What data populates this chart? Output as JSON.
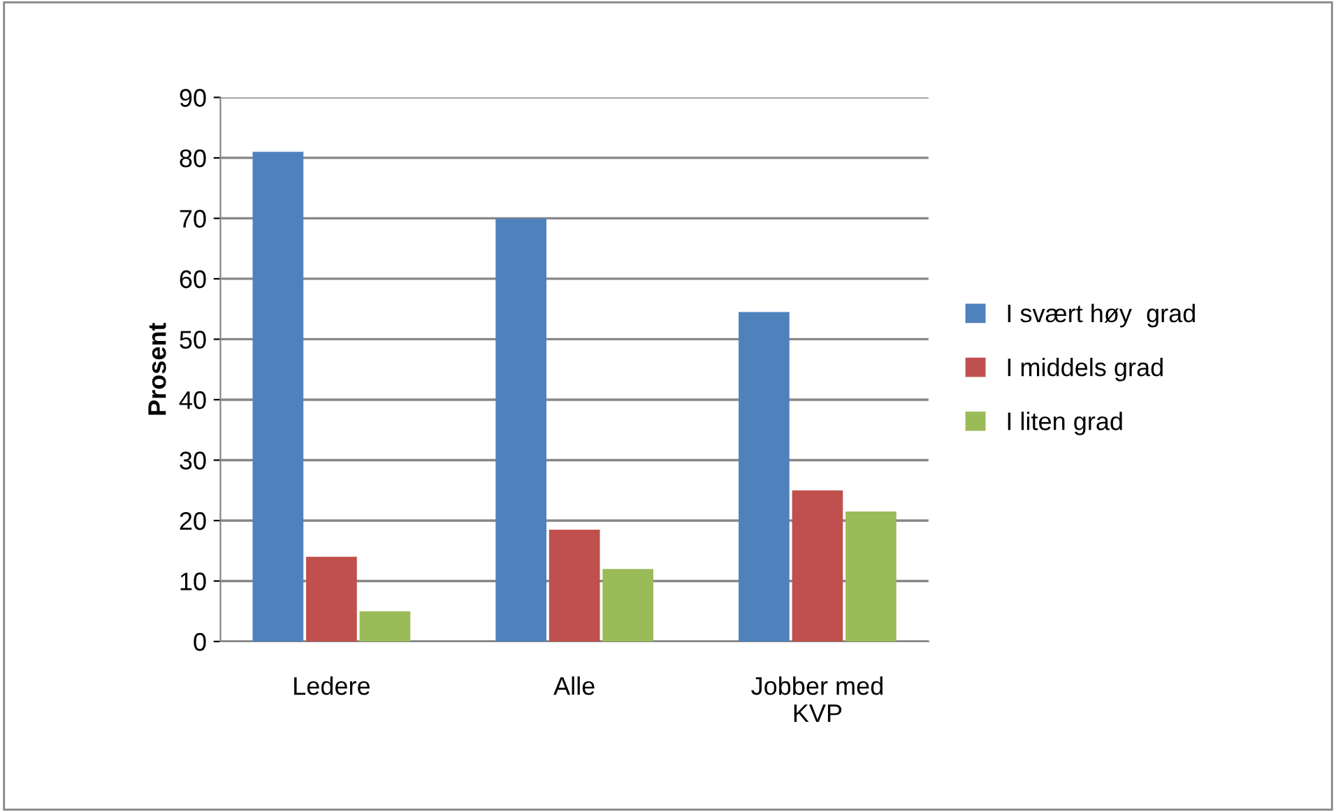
{
  "chart_data": {
    "type": "bar",
    "ylabel": "Prosent",
    "categories": [
      "Ledere",
      "Alle",
      "Jobber med\nKVP"
    ],
    "series": [
      {
        "name": "I svært høy  grad",
        "color": "#4f81bd",
        "values": [
          81,
          70,
          54.5
        ]
      },
      {
        "name": "I middels grad",
        "color": "#c0504d",
        "values": [
          14,
          18.5,
          25
        ]
      },
      {
        "name": "I liten grad",
        "color": "#9bbb59",
        "values": [
          5,
          12,
          21.5
        ]
      }
    ],
    "ylim": [
      0,
      90
    ],
    "yticks": [
      0,
      10,
      20,
      30,
      40,
      50,
      60,
      70,
      80,
      90
    ],
    "grid": "y",
    "legend": "right"
  }
}
